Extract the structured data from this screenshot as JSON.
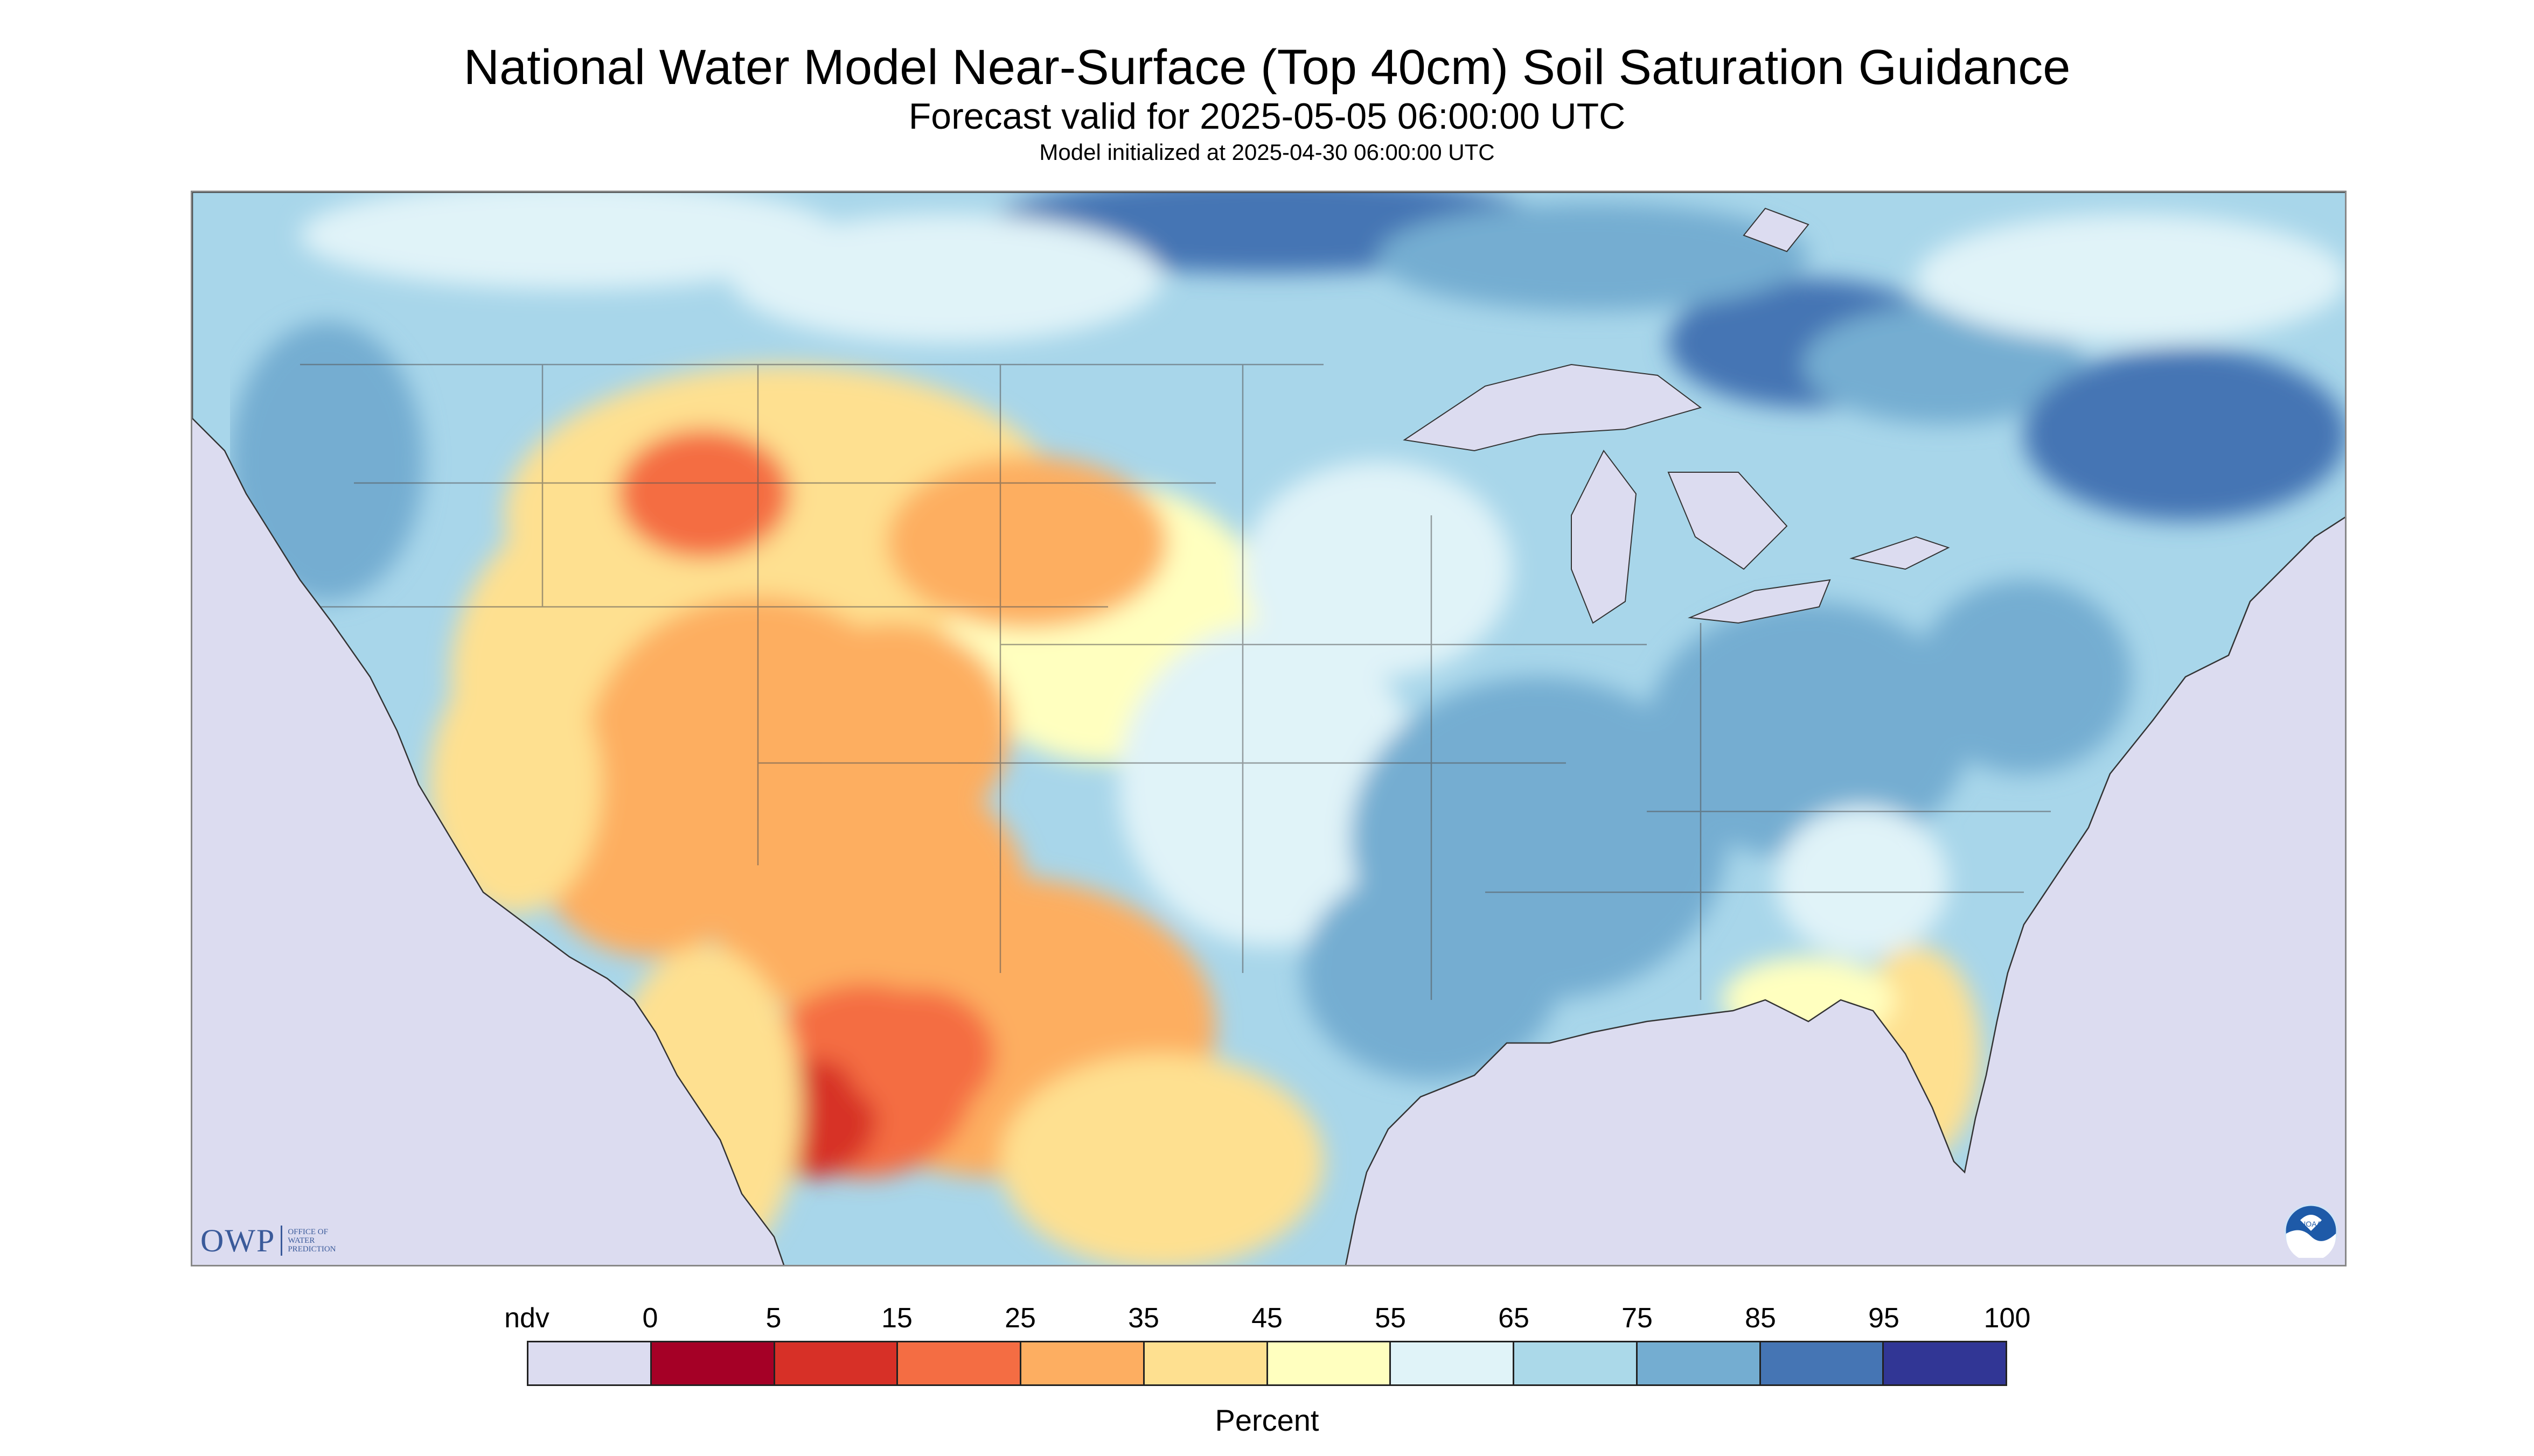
{
  "title": "National Water Model Near-Surface (Top 40cm) Soil Saturation Guidance",
  "subtitle": "Forecast valid for 2025-05-05 06:00:00 UTC",
  "initialized": "Model initialized at 2025-04-30 06:00:00 UTC",
  "logos": {
    "owp_mark": "OWP",
    "owp_text": [
      "OFFICE OF",
      "WATER",
      "PREDICTION"
    ],
    "noaa": "NOAA"
  },
  "legend": {
    "units": "Percent",
    "labels": [
      "ndv",
      "0",
      "5",
      "15",
      "25",
      "35",
      "45",
      "55",
      "65",
      "75",
      "85",
      "95",
      "100"
    ],
    "colors": [
      "#dcdcf0",
      "#a50026",
      "#d73027",
      "#f46d43",
      "#fdae61",
      "#fee090",
      "#ffffbf",
      "#e0f3f8",
      "#abd9e9",
      "#74add1",
      "#4575b4",
      "#313695"
    ]
  },
  "map": {
    "ndv_color": "#dcdcf0",
    "land_base": "#a8d6ea",
    "border_color": "#555555"
  }
}
